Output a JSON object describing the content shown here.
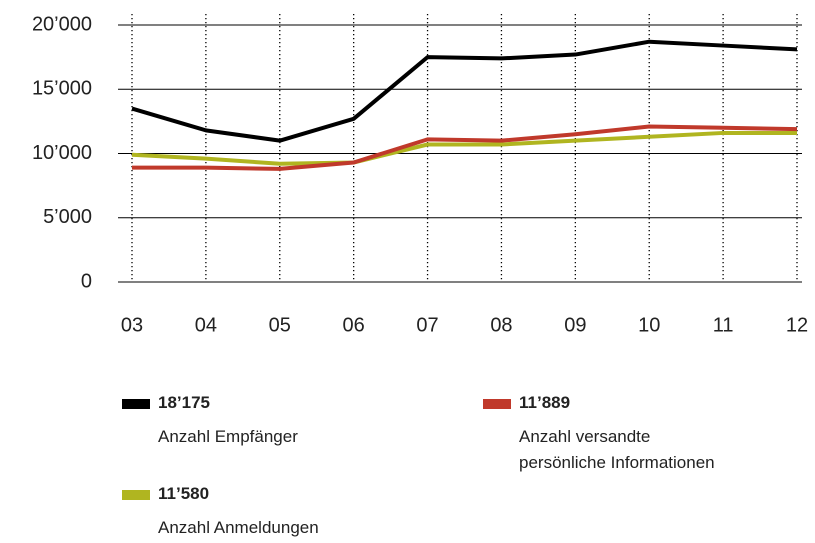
{
  "chart_data": {
    "type": "line",
    "categories": [
      "03",
      "04",
      "05",
      "06",
      "07",
      "08",
      "09",
      "10",
      "11",
      "12"
    ],
    "series": [
      {
        "name": "Anzahl Empfänger",
        "total_label": "18’175",
        "color": "#000000",
        "values": [
          13500,
          11800,
          11000,
          12700,
          17500,
          17400,
          17700,
          18700,
          18400,
          18100
        ]
      },
      {
        "name": "Anzahl versandte persönliche Informationen",
        "total_label": "11’889",
        "color": "#c0392b",
        "values": [
          8900,
          8900,
          8800,
          9300,
          11100,
          11000,
          11500,
          12100,
          12000,
          11900
        ]
      },
      {
        "name": "Anzahl Anmeldungen",
        "total_label": "11’580",
        "color": "#b0b520",
        "values": [
          9900,
          9600,
          9200,
          9300,
          10700,
          10700,
          11000,
          11300,
          11600,
          11600
        ]
      }
    ],
    "ylim": [
      0,
      20000
    ],
    "yticks": [
      0,
      {
        "value": 5000,
        "label": "5’000"
      },
      {
        "value": 10000,
        "label": "10’000"
      },
      {
        "value": 15000,
        "label": "15’000"
      },
      {
        "value": 20000,
        "label": "20’000"
      }
    ],
    "grid": true
  }
}
